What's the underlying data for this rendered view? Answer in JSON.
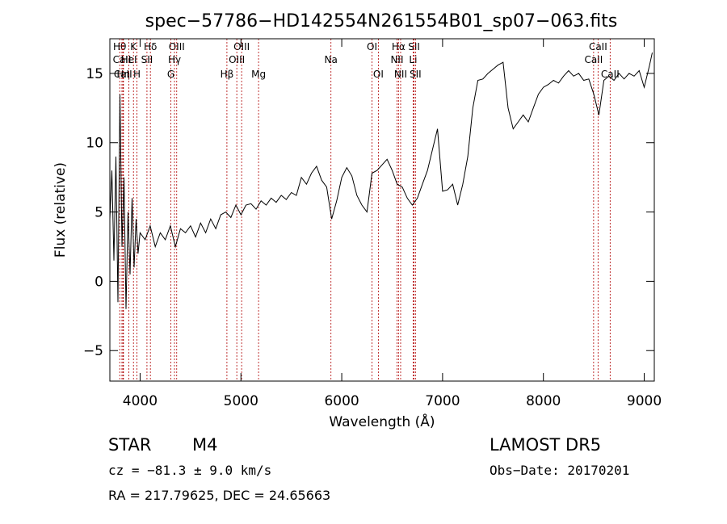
{
  "chart_data": {
    "type": "line",
    "title": "spec−57786−HD142554N261554B01_sp07−063.fits",
    "xlabel": "Wavelength (Å)",
    "ylabel": "Flux (relative)",
    "xlim": [
      3700,
      9100
    ],
    "ylim": [
      -7.2,
      17.5
    ],
    "x_ticks": [
      4000,
      5000,
      6000,
      7000,
      8000,
      9000
    ],
    "y_ticks": [
      -5,
      0,
      5,
      10,
      15
    ],
    "y_tick_labels": [
      "−5",
      "0",
      "5",
      "10",
      "15"
    ],
    "grid": false,
    "series": [
      {
        "x": [
          3700,
          3720,
          3740,
          3760,
          3780,
          3800,
          3820,
          3840,
          3860,
          3880,
          3900,
          3920,
          3940,
          3960,
          3980,
          4000,
          4050,
          4100,
          4150,
          4200,
          4250,
          4300,
          4350,
          4400,
          4450,
          4500,
          4550,
          4600,
          4650,
          4700,
          4750,
          4800,
          4850,
          4900,
          4950,
          5000,
          5050,
          5100,
          5150,
          5200,
          5250,
          5300,
          5350,
          5400,
          5450,
          5500,
          5550,
          5600,
          5650,
          5700,
          5750,
          5800,
          5850,
          5900,
          5950,
          6000,
          6050,
          6100,
          6150,
          6200,
          6250,
          6300,
          6350,
          6400,
          6450,
          6500,
          6550,
          6600,
          6650,
          6700,
          6750,
          6800,
          6850,
          6900,
          6950,
          7000,
          7050,
          7100,
          7150,
          7200,
          7250,
          7300,
          7350,
          7400,
          7450,
          7500,
          7550,
          7600,
          7650,
          7700,
          7750,
          7800,
          7850,
          7900,
          7950,
          8000,
          8050,
          8100,
          8150,
          8200,
          8250,
          8300,
          8350,
          8400,
          8450,
          8500,
          8550,
          8600,
          8650,
          8700,
          8750,
          8800,
          8850,
          8900,
          8950,
          9000,
          9050,
          9080
        ],
        "y": [
          4.5,
          8.0,
          1.5,
          9.0,
          -1.5,
          13.5,
          2.5,
          7.5,
          -2.0,
          5.0,
          0.5,
          6.0,
          1.0,
          4.5,
          2.0,
          3.5,
          3.0,
          4.0,
          2.5,
          3.5,
          3.0,
          4.0,
          2.5,
          3.8,
          3.5,
          4.0,
          3.2,
          4.2,
          3.5,
          4.5,
          3.8,
          4.8,
          5.0,
          4.6,
          5.5,
          4.8,
          5.5,
          5.6,
          5.2,
          5.8,
          5.5,
          6.0,
          5.7,
          6.2,
          5.9,
          6.4,
          6.2,
          7.5,
          7.0,
          7.8,
          8.3,
          7.3,
          6.8,
          4.5,
          5.8,
          7.5,
          8.2,
          7.6,
          6.2,
          5.5,
          5.0,
          7.8,
          8.0,
          8.4,
          8.8,
          8.0,
          7.0,
          6.8,
          6.0,
          5.5,
          6.0,
          7.0,
          8.0,
          9.5,
          11.0,
          6.5,
          6.6,
          7.0,
          5.5,
          7.0,
          9.0,
          12.5,
          14.5,
          14.6,
          15.0,
          15.3,
          15.6,
          15.8,
          12.5,
          11.0,
          11.5,
          12.0,
          11.5,
          12.5,
          13.5,
          14.0,
          14.2,
          14.5,
          14.3,
          14.8,
          15.2,
          14.8,
          15.0,
          14.5,
          14.6,
          13.5,
          12.0,
          14.5,
          14.8,
          14.5,
          15.0,
          14.6,
          15.0,
          14.8,
          15.2,
          14.0,
          15.5,
          16.5
        ]
      }
    ],
    "line_markers": [
      {
        "name": "Hθ",
        "wl": 3798,
        "row": 1
      },
      {
        "name": "CaII",
        "wl": 3820,
        "row": 2
      },
      {
        "name": "CaII",
        "wl": 3830,
        "row": 3
      },
      {
        "name": "Hη",
        "wl": 3835,
        "row": 3
      },
      {
        "name": "HeI",
        "wl": 3889,
        "row": 2
      },
      {
        "name": "K",
        "wl": 3934,
        "row": 1
      },
      {
        "name": "H",
        "wl": 3969,
        "row": 3
      },
      {
        "name": "Hδ",
        "wl": 4102,
        "row": 1
      },
      {
        "name": "SII",
        "wl": 4068,
        "row": 2
      },
      {
        "name": "OIII",
        "wl": 4363,
        "row": 1
      },
      {
        "name": "Hγ",
        "wl": 4341,
        "row": 2
      },
      {
        "name": "G",
        "wl": 4305,
        "row": 3
      },
      {
        "name": "Hβ",
        "wl": 4861,
        "row": 3
      },
      {
        "name": "OIII",
        "wl": 5007,
        "row": 1
      },
      {
        "name": "OIII",
        "wl": 4959,
        "row": 2
      },
      {
        "name": "Mg",
        "wl": 5175,
        "row": 3
      },
      {
        "name": "Na",
        "wl": 5893,
        "row": 2
      },
      {
        "name": "OI",
        "wl": 6300,
        "row": 1
      },
      {
        "name": "OI",
        "wl": 6363,
        "row": 3
      },
      {
        "name": "Hα",
        "wl": 6563,
        "row": 1
      },
      {
        "name": "NII",
        "wl": 6548,
        "row": 2
      },
      {
        "name": "NII",
        "wl": 6584,
        "row": 3
      },
      {
        "name": "SII",
        "wl": 6717,
        "row": 1
      },
      {
        "name": "Li",
        "wl": 6708,
        "row": 2
      },
      {
        "name": "SII",
        "wl": 6731,
        "row": 3
      },
      {
        "name": "CaII",
        "wl": 8498,
        "row": 2
      },
      {
        "name": "CaII",
        "wl": 8542,
        "row": 1
      },
      {
        "name": "CaII",
        "wl": 8662,
        "row": 3
      }
    ]
  },
  "info": {
    "class_label": "STAR",
    "subclass_label": "M4",
    "survey_label": "LAMOST DR5",
    "cz_text": "cz = −81.3 ± 9.0 km/s",
    "obs_date_text": "Obs−Date: 20170201",
    "radec_text": "RA = 217.79625, DEC =  24.65663"
  },
  "colors": {
    "spectrum": "#000000",
    "marker_line": "#b00000",
    "axis": "#000000"
  }
}
